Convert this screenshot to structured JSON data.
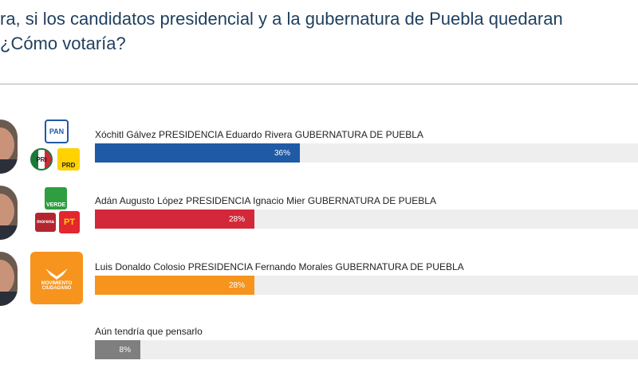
{
  "header": {
    "title_line1": "ra, si los candidatos presidencial y a la gubernatura de Puebla quedaran",
    "title_line2": "¿Cómo votaría?"
  },
  "chart_data": {
    "type": "bar",
    "orientation": "horizontal",
    "categories": [
      "Xóchitl Gálvez PRESIDENCIA Eduardo Rivera GUBERNATURA DE PUEBLA",
      "Adán Augusto López PRESIDENCIA Ignacio Mier GUBERNATURA DE PUEBLA",
      "Luis Donaldo Colosio PRESIDENCIA Fernando Morales GUBERNATURA DE PUEBLA",
      "Aún tendría que pensarlo"
    ],
    "values": [
      36,
      28,
      28,
      8
    ],
    "value_labels": [
      "36%",
      "28%",
      "28%",
      "8%"
    ],
    "colors": [
      "#1f5aa6",
      "#d3283a",
      "#f7941d",
      "#7f7f7f"
    ],
    "xlim": [
      0,
      100
    ],
    "grid": false,
    "legend": "none"
  },
  "logos": {
    "pan": "PAN",
    "pri": "PRI",
    "prd": "PRD",
    "verde": "VERDE",
    "morena": "morena",
    "pt": "PT",
    "mc_line1": "MOVIMIENTO",
    "mc_line2": "CIUDADANO"
  },
  "icons": [
    "pan-logo-icon",
    "pri-logo-icon",
    "prd-logo-icon",
    "verde-logo-icon",
    "morena-logo-icon",
    "pt-logo-icon",
    "movimiento-ciudadano-logo-icon",
    "candidate-photo-icon"
  ]
}
